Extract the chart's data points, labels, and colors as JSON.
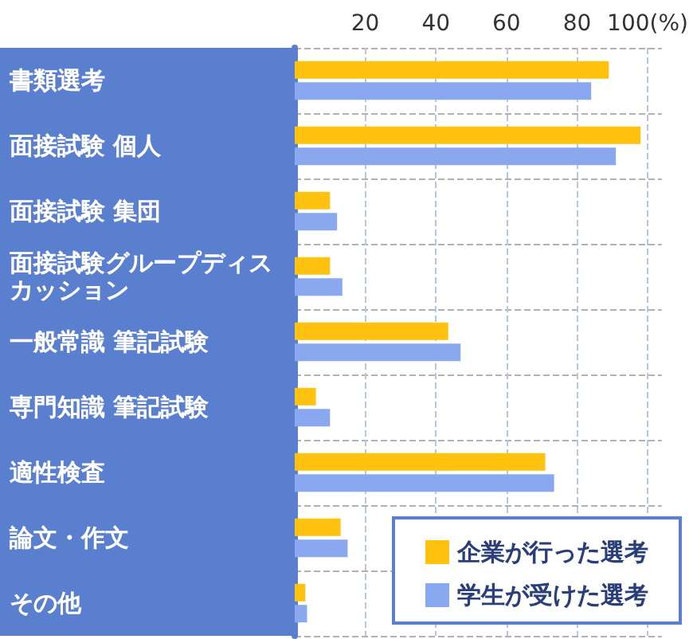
{
  "chart_data": {
    "type": "bar",
    "orientation": "horizontal",
    "categories": [
      "書類選考",
      "面接試験 個人",
      "面接試験 集団",
      "面接試験グループディスカッション",
      "一般常識 筆記試験",
      "専門知識 筆記試験",
      "適性検査",
      "論文・作文",
      "その他"
    ],
    "series": [
      {
        "name": "企業が行った選考",
        "color": "#ffc20e",
        "values": [
          89,
          98,
          10,
          10,
          43.5,
          6,
          71,
          13,
          3
        ]
      },
      {
        "name": "学生が受けた選考",
        "color": "#8aa8f0",
        "values": [
          84,
          91,
          12,
          13.5,
          47,
          10,
          73.5,
          15,
          3.5
        ]
      }
    ],
    "xlim": [
      0,
      104
    ],
    "xticks": [
      20,
      40,
      60,
      80,
      {
        "value": 100,
        "label": "100(%)"
      }
    ],
    "grid": true,
    "legend": "bottom right"
  }
}
